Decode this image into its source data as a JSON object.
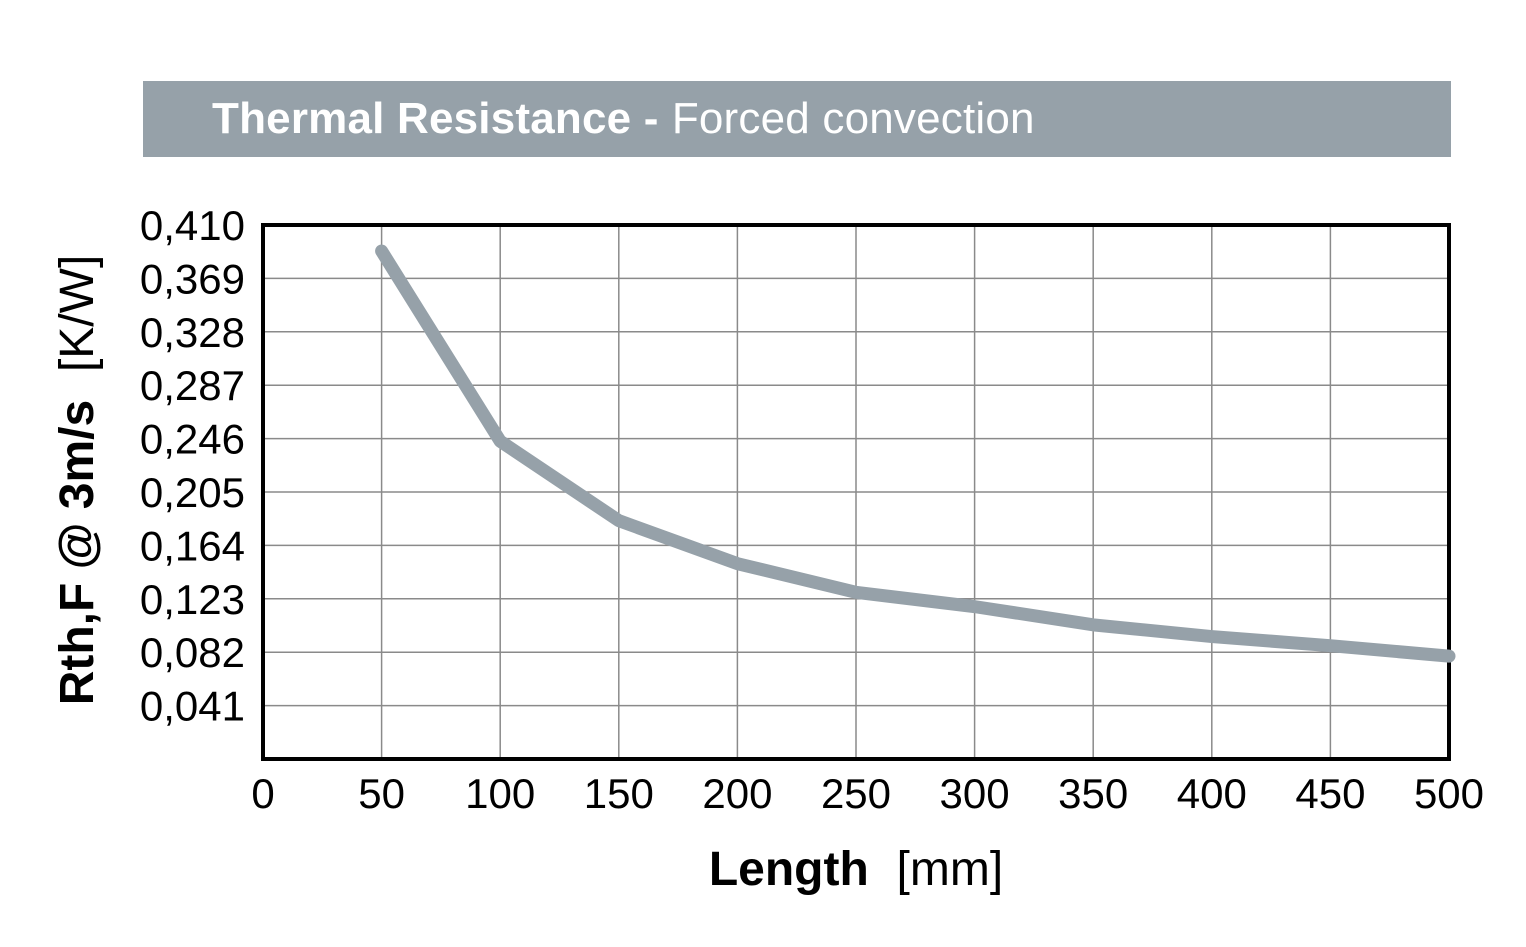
{
  "header": {
    "title_bold": "Thermal Resistance -",
    "title_regular": "Forced convection",
    "bar_color": "#96a1a9",
    "text_color": "#ffffff"
  },
  "chart_data": {
    "type": "line",
    "title": "Thermal Resistance - Forced convection",
    "xlabel_bold": "Length",
    "xlabel_unit": "[mm]",
    "ylabel_bold": "Rth,F @ 3m/s",
    "ylabel_unit": "[K/W]",
    "x": [
      50,
      100,
      150,
      200,
      250,
      300,
      350,
      400,
      450,
      500
    ],
    "y": [
      0.39,
      0.244,
      0.183,
      0.15,
      0.128,
      0.117,
      0.103,
      0.094,
      0.087,
      0.079
    ],
    "xlim": [
      0,
      500
    ],
    "ylim": [
      0,
      0.41
    ],
    "x_tick_step": 50,
    "y_tick_step": 0.041,
    "x_tick_labels": [
      "0",
      "50",
      "100",
      "150",
      "200",
      "250",
      "300",
      "350",
      "400",
      "450",
      "500"
    ],
    "y_tick_labels_top_to_bottom": [
      "0,410",
      "0,369",
      "0,328",
      "0,287",
      "0,246",
      "0,205",
      "0,164",
      "0,123",
      "0,082",
      "0,041"
    ],
    "grid": true,
    "legend": "none",
    "decimal_separator": ",",
    "line_color": "#96a1a9",
    "line_width": 13,
    "grid_color": "#8a8a8a",
    "border_color": "#000000",
    "tick_text_color": "#000000"
  }
}
